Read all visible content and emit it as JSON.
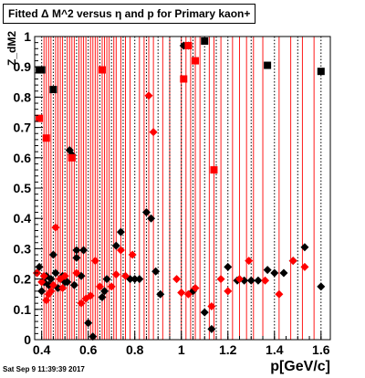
{
  "title": "Fitted Δ M^2 versus η and p for Primary kaon+",
  "ylabel": "Z_dM2",
  "xlabel": "p[GeV/c]",
  "datestamp": "Sat Sep  9 11:39:39 2017",
  "colors": {
    "black": "#000000",
    "red": "#ff0000",
    "frame": "#000000"
  },
  "chart_data": {
    "type": "scatter",
    "title": "Fitted Δ M^2 versus η and p for Primary kaon+",
    "xlabel": "p[GeV/c]",
    "ylabel": "Z_dM2",
    "xlim": [
      0.37,
      1.64
    ],
    "ylim": [
      0,
      1
    ],
    "x_ticks": [
      0.4,
      0.6,
      0.8,
      1,
      1.2,
      1.4,
      1.6
    ],
    "x_tick_labels": [
      "0.4",
      "0.6",
      "0.8",
      "1",
      "1.2",
      "1.4",
      "1.6"
    ],
    "y_ticks": [
      0,
      0.1,
      0.2,
      0.3,
      0.4,
      0.5,
      0.6,
      0.7,
      0.8,
      0.9,
      1
    ],
    "y_tick_labels": [
      "0",
      "0.1",
      "0.2",
      "0.3",
      "0.4",
      "0.5",
      "0.6",
      "0.7",
      "0.8",
      "0.9",
      "1"
    ],
    "vertical_lines": {
      "black_dotted_x": [
        0.4,
        0.45,
        0.5,
        0.55,
        0.6,
        0.65,
        0.7,
        0.75,
        0.8,
        0.85,
        0.9,
        0.95,
        1.0,
        1.05,
        1.1,
        1.15,
        1.2,
        1.3,
        1.4,
        1.5,
        1.6
      ],
      "red_solid_x": [
        0.41,
        0.42,
        0.43,
        0.44,
        0.46,
        0.47,
        0.48,
        0.49,
        0.51,
        0.52,
        0.53,
        0.54,
        0.56,
        0.57,
        0.58,
        0.59,
        0.61,
        0.62,
        0.63,
        0.64,
        0.66,
        0.67,
        0.68,
        0.69,
        0.71,
        0.72,
        0.74,
        0.76,
        0.78,
        0.82,
        0.84,
        0.86,
        0.88,
        0.92,
        0.95,
        1.0,
        1.02,
        1.04,
        1.06,
        1.08,
        1.12,
        1.14,
        1.17,
        1.22,
        1.25,
        1.28,
        1.31,
        1.35,
        1.42,
        1.47,
        1.52,
        1.57
      ]
    },
    "series": [
      {
        "color": "black",
        "marker": "square",
        "points": [
          [
            0.39,
            0.89
          ],
          [
            0.4,
            0.89
          ],
          [
            0.45,
            0.825
          ],
          [
            1.1,
            0.985
          ],
          [
            1.37,
            0.905
          ],
          [
            1.6,
            0.885
          ]
        ]
      },
      {
        "color": "black",
        "marker": "diamond",
        "points": [
          [
            0.38,
            0.22
          ],
          [
            0.39,
            0.24
          ],
          [
            0.4,
            0.16
          ],
          [
            0.41,
            0.19
          ],
          [
            0.42,
            0.21
          ],
          [
            0.43,
            0.18
          ],
          [
            0.44,
            0.2
          ],
          [
            0.45,
            0.28
          ],
          [
            0.46,
            0.22
          ],
          [
            0.47,
            0.17
          ],
          [
            0.48,
            0.2
          ],
          [
            0.49,
            0.21
          ],
          [
            0.5,
            0.19
          ],
          [
            0.51,
            0.19
          ],
          [
            0.52,
            0.625
          ],
          [
            0.53,
            0.61
          ],
          [
            0.54,
            0.18
          ],
          [
            0.55,
            0.27
          ],
          [
            0.55,
            0.295
          ],
          [
            0.57,
            0.21
          ],
          [
            0.58,
            0.295
          ],
          [
            0.6,
            0.055
          ],
          [
            0.62,
            0.01
          ],
          [
            0.66,
            0.14
          ],
          [
            0.67,
            0.16
          ],
          [
            0.68,
            0.2
          ],
          [
            0.72,
            0.31
          ],
          [
            0.74,
            0.355
          ],
          [
            0.78,
            0.2
          ],
          [
            0.8,
            0.2
          ],
          [
            0.82,
            0.2
          ],
          [
            0.85,
            0.42
          ],
          [
            0.87,
            0.4
          ],
          [
            0.89,
            0.225
          ],
          [
            0.91,
            0.15
          ],
          [
            1.01,
            0.97
          ],
          [
            1.03,
            0.97
          ],
          [
            1.05,
            0.16
          ],
          [
            1.1,
            0.09
          ],
          [
            1.13,
            0.035
          ],
          [
            1.2,
            0.24
          ],
          [
            1.24,
            0.195
          ],
          [
            1.27,
            0.195
          ],
          [
            1.3,
            0.195
          ],
          [
            1.33,
            0.195
          ],
          [
            1.37,
            0.23
          ],
          [
            1.4,
            0.22
          ],
          [
            1.44,
            0.22
          ],
          [
            1.48,
            0.26
          ],
          [
            1.53,
            0.305
          ],
          [
            1.6,
            0.175
          ]
        ]
      },
      {
        "color": "red",
        "marker": "square",
        "points": [
          [
            0.39,
            0.73
          ],
          [
            0.42,
            0.665
          ],
          [
            0.53,
            0.6
          ],
          [
            0.66,
            0.89
          ],
          [
            1.01,
            0.86
          ],
          [
            1.03,
            0.97
          ],
          [
            1.06,
            0.92
          ],
          [
            1.14,
            0.56
          ]
        ]
      },
      {
        "color": "red",
        "marker": "diamond",
        "points": [
          [
            0.38,
            0.22
          ],
          [
            0.4,
            0.19
          ],
          [
            0.41,
            0.21
          ],
          [
            0.42,
            0.13
          ],
          [
            0.43,
            0.15
          ],
          [
            0.44,
            0.16
          ],
          [
            0.45,
            0.18
          ],
          [
            0.46,
            0.37
          ],
          [
            0.48,
            0.2
          ],
          [
            0.49,
            0.17
          ],
          [
            0.5,
            0.21
          ],
          [
            0.55,
            0.22
          ],
          [
            0.57,
            0.12
          ],
          [
            0.59,
            0.135
          ],
          [
            0.61,
            0.145
          ],
          [
            0.63,
            0.26
          ],
          [
            0.65,
            0.175
          ],
          [
            0.7,
            0.175
          ],
          [
            0.72,
            0.215
          ],
          [
            0.74,
            0.295
          ],
          [
            0.76,
            0.21
          ],
          [
            0.79,
            0.28
          ],
          [
            0.86,
            0.805
          ],
          [
            0.88,
            0.685
          ],
          [
            0.98,
            0.2
          ],
          [
            1.0,
            0.155
          ],
          [
            1.03,
            0.15
          ],
          [
            1.06,
            0.17
          ],
          [
            1.13,
            0.11
          ],
          [
            1.17,
            0.2
          ],
          [
            1.2,
            0.16
          ],
          [
            1.25,
            0.2
          ],
          [
            1.29,
            0.26
          ],
          [
            1.36,
            0.195
          ],
          [
            1.42,
            0.15
          ],
          [
            1.48,
            0.26
          ],
          [
            1.53,
            0.24
          ]
        ]
      }
    ]
  }
}
